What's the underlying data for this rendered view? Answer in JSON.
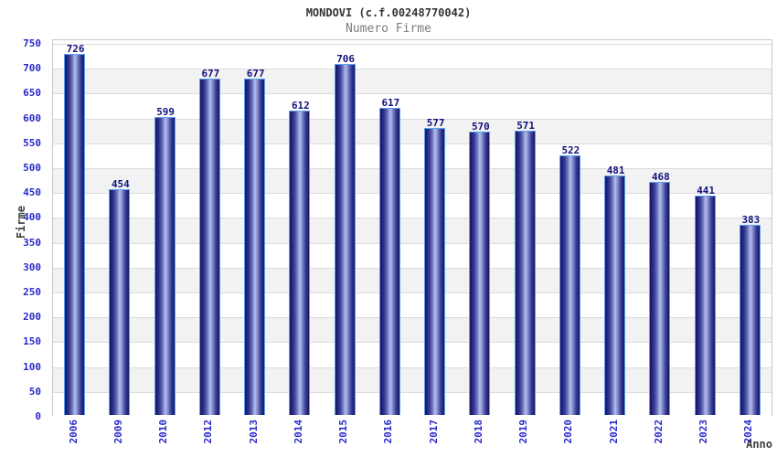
{
  "header": {
    "title": "MONDOVI (c.f.00248770042)",
    "subtitle": "Numero Firme"
  },
  "chart_data": {
    "type": "bar",
    "title": "MONDOVI (c.f.00248770042)",
    "subtitle": "Numero Firme",
    "xlabel": "Anno",
    "ylabel": "Firme",
    "categories": [
      "2006",
      "2009",
      "2010",
      "2012",
      "2013",
      "2014",
      "2015",
      "2016",
      "2017",
      "2018",
      "2019",
      "2020",
      "2021",
      "2022",
      "2023",
      "2024"
    ],
    "values": [
      726,
      454,
      599,
      677,
      677,
      612,
      706,
      617,
      577,
      570,
      571,
      522,
      481,
      468,
      441,
      383
    ],
    "ylim": [
      0,
      750
    ],
    "ytick_step": 50,
    "grid": true,
    "legend": false,
    "bands_alternating": true,
    "colors": {
      "axis_tick_label": "#2929cc",
      "value_label": "#12127d",
      "title": "#333333",
      "subtitle": "#7d7d7d",
      "axis_title": "#3d3d3d",
      "gridline": "#dcdcdc",
      "band_gray": "#f2f2f2",
      "band_white": "#ffffff",
      "bar_border": "#5ca0f2",
      "bar_dark": "#161660",
      "bar_light": "#b7bfec",
      "plot_border": "#c8c8c8",
      "axis_line": "#aaaaaa"
    }
  }
}
